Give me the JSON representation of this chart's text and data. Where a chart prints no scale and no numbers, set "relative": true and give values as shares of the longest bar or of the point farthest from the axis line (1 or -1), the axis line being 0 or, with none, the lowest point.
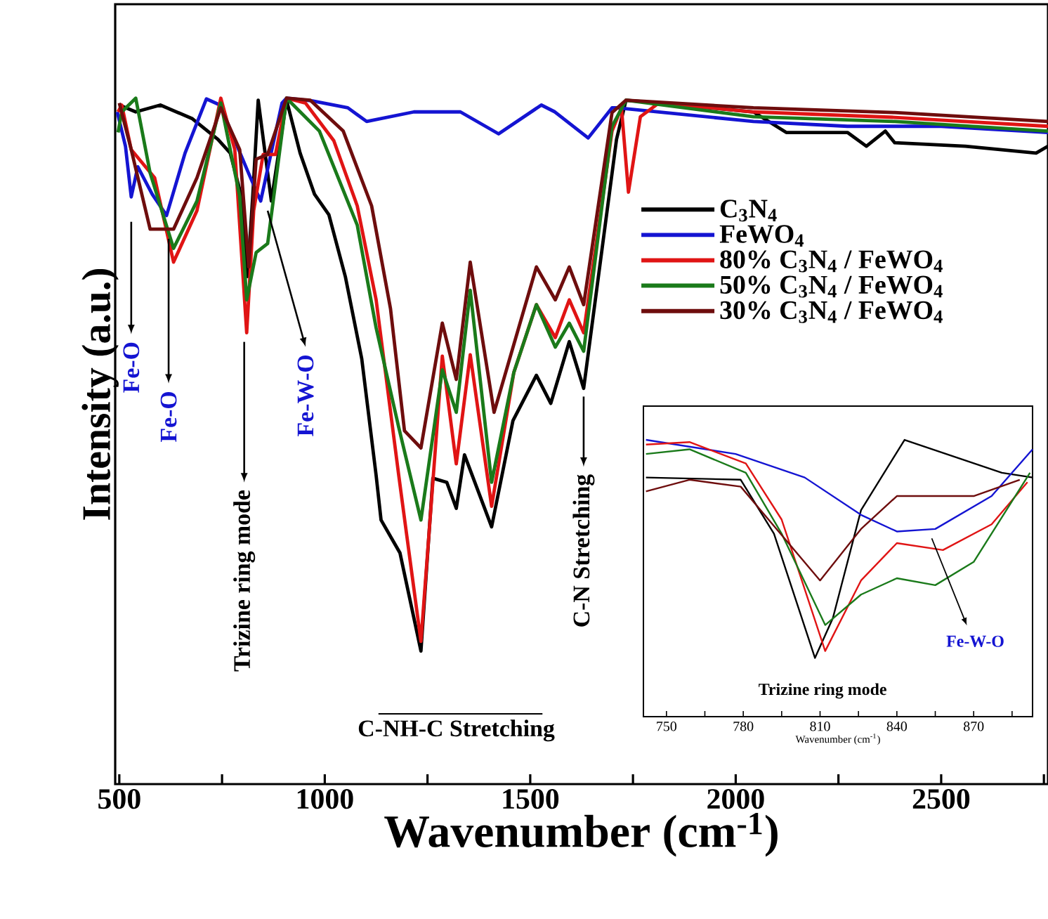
{
  "chart_data": [
    {
      "type": "line",
      "xlabel": "Wavenumber (cm$^{-1}$)",
      "ylabel": "Intensity (a.u.)",
      "relative": true,
      "legend": "right",
      "grid": false,
      "marker": "none",
      "line_style": "solid",
      "xlim": [
        490,
        2760
      ],
      "xticks": [
        500,
        {
          "value": 750,
          "label": null
        },
        1000,
        {
          "value": 1250,
          "label": null
        },
        1500,
        {
          "value": 1750,
          "label": null
        },
        2000,
        {
          "value": 2250,
          "label": null
        },
        2500,
        {
          "value": 2750,
          "label": null
        }
      ],
      "series": [
        {
          "name": "C$_{3}$N$_{4}$",
          "color": "#000000",
          "x": [
            500,
            540,
            600,
            678,
            740,
            770,
            800,
            812,
            825,
            838,
            870,
            907,
            940,
            975,
            1010,
            1050,
            1090,
            1125,
            1137,
            1183,
            1234,
            1263,
            1297,
            1320,
            1340,
            1406,
            1458,
            1515,
            1550,
            1595,
            1630,
            1710,
            1733,
            1813,
            2043,
            2123,
            2272,
            2318,
            2364,
            2387,
            2559,
            2731,
            2760
          ],
          "values": [
            0.99,
            0.98,
            0.99,
            0.97,
            0.94,
            0.92,
            0.85,
            0.74,
            0.86,
            0.997,
            0.85,
            0.997,
            0.92,
            0.86,
            0.83,
            0.74,
            0.62,
            0.45,
            0.385,
            0.337,
            0.194,
            0.446,
            0.44,
            0.402,
            0.48,
            0.375,
            0.53,
            0.596,
            0.555,
            0.645,
            0.577,
            0.94,
            0.997,
            0.993,
            0.98,
            0.95,
            0.95,
            0.93,
            0.952,
            0.935,
            0.93,
            0.92,
            0.93
          ]
        },
        {
          "name": "FeWO$_{4}$",
          "color": "#1414d2",
          "x": [
            495,
            515,
            529,
            545,
            580,
            615,
            660,
            712,
            745,
            815,
            844,
            896,
            907,
            970,
            1056,
            1102,
            1217,
            1330,
            1423,
            1527,
            1560,
            1641,
            1699,
            1710,
            2043,
            2272,
            2500,
            2760
          ],
          "values": [
            0.98,
            0.93,
            0.856,
            0.9,
            0.86,
            0.829,
            0.92,
            0.999,
            0.99,
            0.89,
            0.85,
            0.993,
            1.0,
            0.996,
            0.986,
            0.966,
            0.98,
            0.98,
            0.948,
            0.99,
            0.98,
            0.942,
            0.986,
            0.986,
            0.966,
            0.959,
            0.959,
            0.95
          ]
        },
        {
          "name": "80% C$_{3}$N$_{4}$ / FeWO$_{4}$",
          "color": "#e01414",
          "x": [
            497,
            506,
            529,
            586,
            632,
            689,
            747,
            781,
            810,
            827,
            850,
            880,
            907,
            953,
            1022,
            1079,
            1125,
            1180,
            1234,
            1286,
            1320,
            1354,
            1406,
            1460,
            1515,
            1561,
            1595,
            1630,
            1699,
            1722,
            1739,
            1768,
            1813,
            2043,
            2387,
            2760
          ],
          "values": [
            0.98,
            0.99,
            0.925,
            0.884,
            0.761,
            0.836,
            1.0,
            0.925,
            0.658,
            0.836,
            0.918,
            0.918,
            1.0,
            0.993,
            0.938,
            0.843,
            0.706,
            0.45,
            0.208,
            0.624,
            0.467,
            0.626,
            0.405,
            0.6,
            0.699,
            0.651,
            0.706,
            0.658,
            0.952,
            0.986,
            0.863,
            0.973,
            0.993,
            0.98,
            0.972,
            0.959
          ]
        },
        {
          "name": "50% C$_{3}$N$_{4}$ / FeWO$_{4}$",
          "color": "#1a7a1a",
          "x": [
            497,
            506,
            540,
            575,
            632,
            689,
            747,
            793,
            810,
            833,
            861,
            907,
            987,
            1079,
            1125,
            1180,
            1234,
            1286,
            1320,
            1354,
            1406,
            1460,
            1515,
            1561,
            1595,
            1630,
            1699,
            1733,
            2043,
            2387,
            2760
          ],
          "values": [
            0.95,
            0.98,
            1.0,
            0.891,
            0.781,
            0.85,
            0.993,
            0.857,
            0.706,
            0.775,
            0.788,
            1.0,
            0.952,
            0.815,
            0.665,
            0.52,
            0.385,
            0.604,
            0.542,
            0.72,
            0.44,
            0.6,
            0.699,
            0.637,
            0.672,
            0.631,
            0.959,
            0.997,
            0.973,
            0.966,
            0.952
          ]
        },
        {
          "name": "30% C$_{3}$N$_{4}$ / FeWO$_{4}$",
          "color": "#6e0d0d",
          "x": [
            500,
            529,
            575,
            632,
            689,
            747,
            793,
            815,
            833,
            861,
            907,
            965,
            1045,
            1114,
            1160,
            1194,
            1234,
            1286,
            1320,
            1354,
            1412,
            1515,
            1561,
            1595,
            1630,
            1699,
            1733,
            2043,
            2387,
            2760
          ],
          "values": [
            0.993,
            0.925,
            0.809,
            0.809,
            0.884,
            0.986,
            0.925,
            0.754,
            0.911,
            0.918,
            1.0,
            0.997,
            0.952,
            0.843,
            0.693,
            0.515,
            0.49,
            0.672,
            0.59,
            0.761,
            0.542,
            0.754,
            0.706,
            0.754,
            0.699,
            0.979,
            0.997,
            0.986,
            0.979,
            0.966
          ]
        }
      ],
      "annotations": [
        "Fe-O",
        {
          "text": "Fe-O",
          "x": 620,
          "y": 0.795
        },
        "Trizine ring mode",
        {
          "text": "Fe-W-O",
          "x": 861,
          "y": 0.836
        },
        {
          "text": "C-N Stretching",
          "x": 1630,
          "y": 0.565
        },
        "C-NH-C Stretching"
      ]
    },
    {
      "type": "line",
      "xlabel": "Wavenumber (cm$^{-1}$)",
      "relative": true,
      "legend": false,
      "grid": false,
      "marker": "none",
      "line_style": "solid",
      "xlim": [
        741,
        893
      ],
      "xticks": [
        750,
        {
          "value": 765,
          "label": null
        },
        780,
        {
          "value": 795,
          "label": null
        },
        810,
        {
          "value": 825,
          "label": null
        },
        840,
        {
          "value": 855,
          "label": null
        },
        870,
        {
          "value": 885,
          "label": null
        }
      ],
      "series": [
        {
          "color": "#000000",
          "x": [
            742,
            779,
            792,
            808,
            815,
            826,
            843,
            881,
            893
          ],
          "values": [
            0.864,
            0.856,
            0.661,
            0.212,
            0.356,
            0.746,
            1.0,
            0.881,
            0.864
          ]
        },
        {
          "color": "#1414d2",
          "x": [
            742,
            777,
            804,
            826,
            840,
            855,
            877,
            893
          ],
          "values": [
            1.0,
            0.949,
            0.864,
            0.729,
            0.669,
            0.678,
            0.797,
            0.966
          ]
        },
        {
          "color": "#e01414",
          "x": [
            742,
            759,
            781,
            795,
            812,
            826,
            840,
            858,
            877,
            891
          ],
          "values": [
            0.983,
            0.992,
            0.915,
            0.712,
            0.237,
            0.492,
            0.627,
            0.602,
            0.695,
            0.847
          ]
        },
        {
          "color": "#1a7a1a",
          "x": [
            742,
            759,
            781,
            795,
            812,
            826,
            840,
            855,
            870,
            892
          ],
          "values": [
            0.949,
            0.966,
            0.881,
            0.661,
            0.331,
            0.441,
            0.5,
            0.475,
            0.559,
            0.881
          ]
        },
        {
          "color": "#6e0d0d",
          "x": [
            742,
            759,
            779,
            793,
            810,
            826,
            840,
            870,
            888
          ],
          "values": [
            0.814,
            0.856,
            0.831,
            0.678,
            0.492,
            0.678,
            0.797,
            0.797,
            0.856
          ]
        }
      ],
      "annotations": [
        "Fe-W-O",
        "Trizine ring mode"
      ]
    }
  ]
}
